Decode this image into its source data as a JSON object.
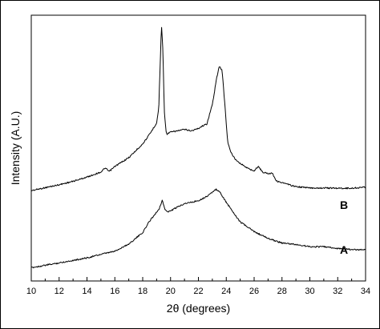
{
  "chart_data": {
    "type": "line",
    "title": "",
    "xlabel": "2θ (degrees)",
    "ylabel": "Intensity (A.U.)",
    "xlim": [
      10,
      34
    ],
    "xticks": [
      10,
      12,
      14,
      16,
      18,
      20,
      22,
      24,
      26,
      28,
      30,
      32,
      34
    ],
    "x_tick_labels": [
      "10",
      "12",
      "14",
      "16",
      "18",
      "20",
      "22",
      "24",
      "26",
      "28",
      "30",
      "32",
      "34"
    ],
    "ylim": [
      0,
      100
    ],
    "yticks_shown": false,
    "grid": false,
    "legend": "none",
    "series": [
      {
        "name": "B",
        "color": "#000000",
        "x": [
          10,
          11,
          12,
          13,
          14,
          15,
          15.3,
          15.6,
          16,
          17,
          18,
          18.5,
          19,
          19.15,
          19.25,
          19.35,
          19.45,
          19.55,
          19.7,
          20,
          20.5,
          21,
          21.5,
          22,
          22.3,
          22.6,
          23,
          23.3,
          23.5,
          23.7,
          23.9,
          24.1,
          24.3,
          24.6,
          25,
          25.5,
          26,
          26.3,
          26.6,
          27,
          27.3,
          27.6,
          28,
          28.5,
          29,
          30,
          31,
          32,
          33,
          34
        ],
        "y": [
          34,
          35.1,
          36.2,
          37.5,
          39.1,
          41,
          42.5,
          41.2,
          43.1,
          46.4,
          51.6,
          55.2,
          59.5,
          65,
          80,
          96.5,
          87,
          64,
          55.2,
          56,
          56.5,
          57,
          56.5,
          57.4,
          58.4,
          59,
          66.4,
          76.1,
          80.7,
          79.3,
          66,
          52.6,
          48.7,
          46.1,
          44.3,
          42.5,
          41.4,
          43.2,
          41,
          40.4,
          40.7,
          37.6,
          37,
          36.2,
          35.5,
          35,
          35,
          34.9,
          34.9,
          35.3
        ]
      },
      {
        "name": "A",
        "color": "#000000",
        "x": [
          10,
          12,
          14,
          15,
          16,
          17,
          18,
          18.5,
          19,
          19.2,
          19.4,
          19.6,
          19.8,
          20,
          20.5,
          21,
          21.5,
          22,
          22.5,
          23,
          23.3,
          23.6,
          23.9,
          24.3,
          24.7,
          25,
          25.5,
          26,
          27,
          28,
          29,
          30,
          31,
          32,
          33,
          34
        ],
        "y": [
          5,
          6.8,
          8.7,
          10,
          11.2,
          13.9,
          18.2,
          22.6,
          25.9,
          27.4,
          30.3,
          27,
          25.9,
          26.4,
          27.8,
          29.2,
          29.6,
          30.3,
          31.5,
          33.4,
          34.5,
          33,
          30.3,
          27.4,
          24.4,
          22.2,
          20.4,
          18.6,
          16,
          14.3,
          13.7,
          12.9,
          12.9,
          12.2,
          11.8,
          11.8
        ]
      }
    ],
    "annotations": [
      "B",
      "A"
    ]
  }
}
